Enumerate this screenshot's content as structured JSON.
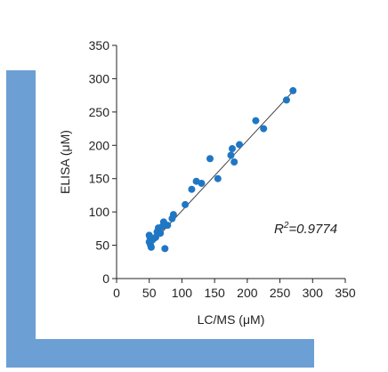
{
  "colors": {
    "frame": "#6c9fd4",
    "point": "#1f77c4",
    "axis": "#222222",
    "fit_line": "#444444"
  },
  "chart_data": {
    "type": "scatter",
    "title": "",
    "xlabel": "LC/MS (μM)",
    "ylabel": "ELISA (μM)",
    "xlim": [
      0,
      350
    ],
    "ylim": [
      0,
      350
    ],
    "xticks": [
      0,
      50,
      100,
      150,
      200,
      250,
      300,
      350
    ],
    "yticks": [
      0,
      50,
      100,
      150,
      200,
      250,
      300,
      350
    ],
    "grid": false,
    "legend": "none",
    "annotation": {
      "prefix": "R",
      "sup": "2",
      "suffix": "=0.9774"
    },
    "fit_line": {
      "x": [
        50,
        270
      ],
      "y": [
        49,
        281
      ]
    },
    "points": [
      [
        50,
        65
      ],
      [
        50,
        55
      ],
      [
        51,
        62
      ],
      [
        52,
        50
      ],
      [
        53,
        47
      ],
      [
        55,
        58
      ],
      [
        57,
        60
      ],
      [
        60,
        62
      ],
      [
        62,
        70
      ],
      [
        64,
        76
      ],
      [
        65,
        74
      ],
      [
        67,
        68
      ],
      [
        70,
        78
      ],
      [
        72,
        85
      ],
      [
        74,
        45
      ],
      [
        78,
        80
      ],
      [
        85,
        90
      ],
      [
        87,
        96
      ],
      [
        105,
        111
      ],
      [
        115,
        134
      ],
      [
        122,
        146
      ],
      [
        130,
        143
      ],
      [
        143,
        180
      ],
      [
        155,
        150
      ],
      [
        175,
        185
      ],
      [
        177,
        195
      ],
      [
        180,
        175
      ],
      [
        188,
        201
      ],
      [
        213,
        237
      ],
      [
        225,
        225
      ],
      [
        260,
        268
      ],
      [
        270,
        282
      ]
    ]
  }
}
